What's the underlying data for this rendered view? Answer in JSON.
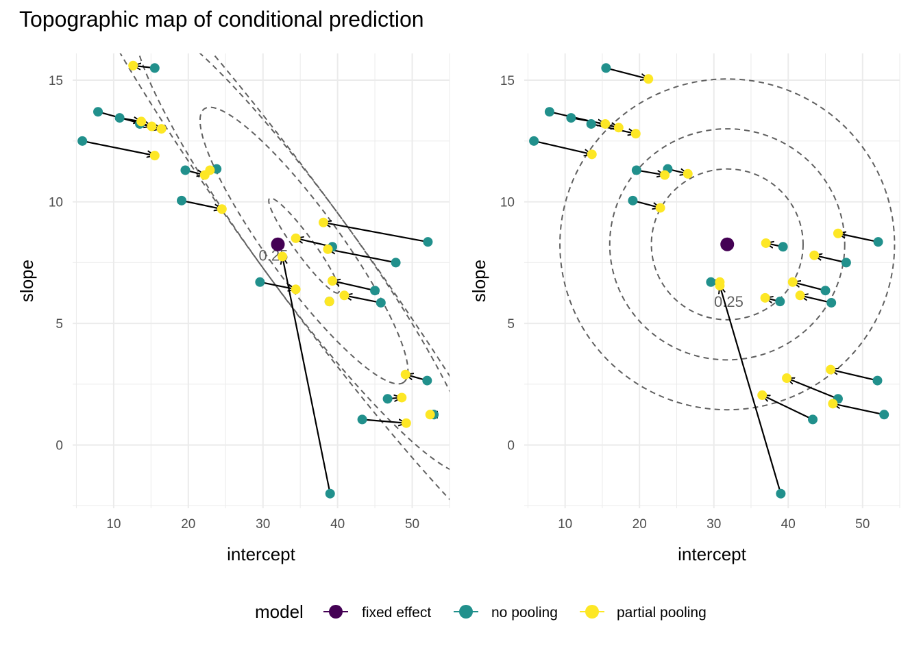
{
  "title": "Topographic map of conditional prediction",
  "colors": {
    "fixed_effect": "#440154",
    "no_pooling": "#21908C",
    "partial_pooling": "#FDE725",
    "grid": "#EBEBEB",
    "contour": "#606060",
    "arrow": "#000000",
    "text": "#000000",
    "tick_text": "#4D4D4D"
  },
  "legend": {
    "title": "model",
    "items": [
      {
        "label": "fixed effect",
        "color": "#440154"
      },
      {
        "label": "no pooling",
        "color": "#21908C"
      },
      {
        "label": "partial pooling",
        "color": "#FDE725"
      }
    ]
  },
  "chart_data": [
    {
      "type": "scatter",
      "panel": "left",
      "xlabel": "intercept",
      "ylabel": "slope",
      "xlim": [
        4.5,
        55
      ],
      "ylim": [
        -2.6,
        16.1
      ],
      "xticks": [
        10,
        20,
        30,
        40,
        50
      ],
      "yticks": [
        0,
        5,
        10,
        15
      ],
      "contour_label": "0.25",
      "contour_label_pos": [
        31.4,
        7.8
      ],
      "fixed_effect": [
        32.0,
        8.25
      ],
      "contours": [
        {
          "cx": 35.5,
          "cy": 8.2,
          "rx": 5.0,
          "ry": 0.42,
          "angle_deg": -22.8
        },
        {
          "cx": 35.5,
          "cy": 8.2,
          "rx": 14.5,
          "ry": 1.6,
          "angle_deg": -22.8
        },
        {
          "cx": 35.5,
          "cy": 8.2,
          "rx": 24.0,
          "ry": 2.05,
          "angle_deg": -22.8
        },
        {
          "cx": 35.5,
          "cy": 8.2,
          "rx": 34.5,
          "ry": 2.05,
          "angle_deg": -22.8
        }
      ],
      "subjects": [
        {
          "no_pooling": [
            15.5,
            15.5
          ],
          "partial_pooling": [
            12.6,
            15.6
          ]
        },
        {
          "no_pooling": [
            7.9,
            13.7
          ],
          "partial_pooling": [
            15.1,
            13.1
          ]
        },
        {
          "no_pooling": [
            10.8,
            13.45
          ],
          "partial_pooling": [
            13.7,
            13.3
          ]
        },
        {
          "no_pooling": [
            13.5,
            13.2
          ],
          "partial_pooling": [
            16.4,
            13.0
          ]
        },
        {
          "no_pooling": [
            5.8,
            12.5
          ],
          "partial_pooling": [
            15.5,
            11.9
          ]
        },
        {
          "no_pooling": [
            19.6,
            11.3
          ],
          "partial_pooling": [
            22.2,
            11.1
          ]
        },
        {
          "no_pooling": [
            23.8,
            11.35
          ],
          "partial_pooling": [
            22.9,
            11.3
          ]
        },
        {
          "no_pooling": [
            19.1,
            10.05
          ],
          "partial_pooling": [
            24.5,
            9.7
          ]
        },
        {
          "no_pooling": [
            52.1,
            8.35
          ],
          "partial_pooling": [
            38.1,
            9.15
          ]
        },
        {
          "no_pooling": [
            39.3,
            8.15
          ],
          "partial_pooling": [
            34.4,
            8.5
          ]
        },
        {
          "no_pooling": [
            47.8,
            7.5
          ],
          "partial_pooling": [
            38.7,
            8.05
          ]
        },
        {
          "no_pooling": [
            29.6,
            6.7
          ],
          "partial_pooling": [
            34.4,
            6.4
          ]
        },
        {
          "no_pooling": [
            45.0,
            6.35
          ],
          "partial_pooling": [
            39.3,
            6.75
          ]
        },
        {
          "no_pooling": [
            45.8,
            5.85
          ],
          "partial_pooling": [
            40.9,
            6.15
          ]
        },
        {
          "no_pooling": [
            39.0,
            -2.0
          ],
          "partial_pooling": [
            32.6,
            7.75
          ]
        },
        {
          "no_pooling": [
            38.9,
            5.9
          ],
          "partial_pooling": [
            38.9,
            5.9
          ]
        },
        {
          "no_pooling": [
            52.0,
            2.65
          ],
          "partial_pooling": [
            49.1,
            2.9
          ]
        },
        {
          "no_pooling": [
            46.7,
            1.9
          ],
          "partial_pooling": [
            48.6,
            1.95
          ]
        },
        {
          "no_pooling": [
            43.3,
            1.05
          ],
          "partial_pooling": [
            49.2,
            0.9
          ]
        },
        {
          "no_pooling": [
            52.9,
            1.25
          ],
          "partial_pooling": [
            52.4,
            1.25
          ]
        }
      ]
    },
    {
      "type": "scatter",
      "panel": "right",
      "xlabel": "intercept",
      "ylabel": "slope",
      "xlim": [
        4.5,
        55
      ],
      "ylim": [
        -2.6,
        16.1
      ],
      "xticks": [
        10,
        20,
        30,
        40,
        50
      ],
      "yticks": [
        0,
        5,
        10,
        15
      ],
      "contour_label": "0.25",
      "contour_label_pos": [
        32.0,
        5.9
      ],
      "fixed_effect": [
        31.8,
        8.25
      ],
      "contours": [
        {
          "cx": 31.8,
          "cy": 8.25,
          "rx": 10.2,
          "ry": 3.1,
          "angle_deg": 0
        },
        {
          "cx": 31.8,
          "cy": 8.25,
          "rx": 15.8,
          "ry": 4.75,
          "angle_deg": 0
        },
        {
          "cx": 31.8,
          "cy": 8.25,
          "rx": 22.5,
          "ry": 6.8,
          "angle_deg": 0
        }
      ],
      "subjects": [
        {
          "no_pooling": [
            15.5,
            15.5
          ],
          "partial_pooling": [
            21.2,
            15.05
          ]
        },
        {
          "no_pooling": [
            7.9,
            13.7
          ],
          "partial_pooling": [
            17.2,
            13.05
          ]
        },
        {
          "no_pooling": [
            10.8,
            13.45
          ],
          "partial_pooling": [
            15.4,
            13.2
          ]
        },
        {
          "no_pooling": [
            13.5,
            13.2
          ],
          "partial_pooling": [
            19.5,
            12.8
          ]
        },
        {
          "no_pooling": [
            5.8,
            12.5
          ],
          "partial_pooling": [
            13.6,
            11.95
          ]
        },
        {
          "no_pooling": [
            19.6,
            11.3
          ],
          "partial_pooling": [
            23.4,
            11.1
          ]
        },
        {
          "no_pooling": [
            23.8,
            11.35
          ],
          "partial_pooling": [
            26.5,
            11.15
          ]
        },
        {
          "no_pooling": [
            19.1,
            10.05
          ],
          "partial_pooling": [
            22.8,
            9.75
          ]
        },
        {
          "no_pooling": [
            52.1,
            8.35
          ],
          "partial_pooling": [
            46.7,
            8.7
          ]
        },
        {
          "no_pooling": [
            39.3,
            8.15
          ],
          "partial_pooling": [
            37.0,
            8.3
          ]
        },
        {
          "no_pooling": [
            47.8,
            7.5
          ],
          "partial_pooling": [
            43.5,
            7.8
          ]
        },
        {
          "no_pooling": [
            29.6,
            6.7
          ],
          "partial_pooling": [
            30.8,
            6.7
          ]
        },
        {
          "no_pooling": [
            45.0,
            6.35
          ],
          "partial_pooling": [
            40.6,
            6.7
          ]
        },
        {
          "no_pooling": [
            45.8,
            5.85
          ],
          "partial_pooling": [
            41.6,
            6.15
          ]
        },
        {
          "no_pooling": [
            39.0,
            -2.0
          ],
          "partial_pooling": [
            30.8,
            6.55
          ]
        },
        {
          "no_pooling": [
            38.9,
            5.9
          ],
          "partial_pooling": [
            36.9,
            6.05
          ]
        },
        {
          "no_pooling": [
            52.0,
            2.65
          ],
          "partial_pooling": [
            45.7,
            3.1
          ]
        },
        {
          "no_pooling": [
            46.7,
            1.9
          ],
          "partial_pooling": [
            39.8,
            2.75
          ]
        },
        {
          "no_pooling": [
            43.3,
            1.05
          ],
          "partial_pooling": [
            36.5,
            2.05
          ]
        },
        {
          "no_pooling": [
            52.9,
            1.25
          ],
          "partial_pooling": [
            46.0,
            1.7
          ]
        }
      ]
    }
  ]
}
